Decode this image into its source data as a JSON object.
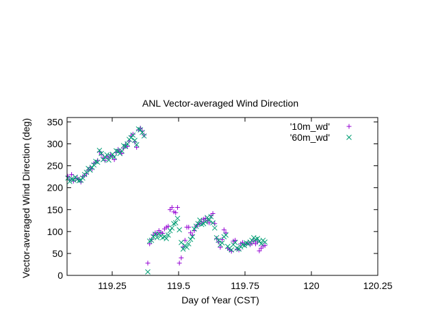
{
  "chart_data": {
    "type": "scatter",
    "title": "ANL Vector-averaged Wind Direction",
    "xlabel": "Day of Year  (CST)",
    "ylabel": "Vector-averaged Wind Direction (deg)",
    "xlim": [
      119.08,
      120.25
    ],
    "ylim": [
      0,
      360
    ],
    "xticks": [
      119.25,
      119.5,
      119.75,
      120,
      120.25
    ],
    "xtick_labels": [
      "119.25",
      "119.5",
      "119.75",
      "120",
      "120.25"
    ],
    "yticks": [
      0,
      50,
      100,
      150,
      200,
      250,
      300,
      350
    ],
    "ytick_labels": [
      "0",
      "50",
      "100",
      "150",
      "200",
      "250",
      "300",
      "350"
    ],
    "grid": false,
    "legend_position": "top-right",
    "series": [
      {
        "name": "'10m_wd'",
        "marker": "+",
        "color": "#9400d3",
        "points": [
          [
            119.083,
            226
          ],
          [
            119.09,
            218
          ],
          [
            119.097,
            230
          ],
          [
            119.104,
            215
          ],
          [
            119.111,
            221
          ],
          [
            119.118,
            222
          ],
          [
            119.125,
            219
          ],
          [
            119.132,
            213
          ],
          [
            119.139,
            225
          ],
          [
            119.146,
            228
          ],
          [
            119.153,
            232
          ],
          [
            119.16,
            240
          ],
          [
            119.167,
            246
          ],
          [
            119.174,
            243
          ],
          [
            119.181,
            255
          ],
          [
            119.188,
            258
          ],
          [
            119.195,
            262
          ],
          [
            119.202,
            282
          ],
          [
            119.209,
            276
          ],
          [
            119.216,
            268
          ],
          [
            119.223,
            262
          ],
          [
            119.23,
            271
          ],
          [
            119.237,
            268
          ],
          [
            119.244,
            275
          ],
          [
            119.251,
            272
          ],
          [
            119.258,
            264
          ],
          [
            119.265,
            280
          ],
          [
            119.272,
            287
          ],
          [
            119.279,
            283
          ],
          [
            119.286,
            278
          ],
          [
            119.293,
            290
          ],
          [
            119.3,
            298
          ],
          [
            119.307,
            294
          ],
          [
            119.314,
            306
          ],
          [
            119.321,
            318
          ],
          [
            119.328,
            322
          ],
          [
            119.335,
            304
          ],
          [
            119.342,
            292
          ],
          [
            119.349,
            332
          ],
          [
            119.356,
            336
          ],
          [
            119.363,
            329
          ],
          [
            119.37,
            320
          ],
          [
            119.384,
            28
          ],
          [
            119.391,
            72
          ],
          [
            119.398,
            82
          ],
          [
            119.405,
            92
          ],
          [
            119.412,
            97
          ],
          [
            119.419,
            94
          ],
          [
            119.426,
            102
          ],
          [
            119.433,
            98
          ],
          [
            119.44,
            96
          ],
          [
            119.447,
            106
          ],
          [
            119.454,
            110
          ],
          [
            119.461,
            112
          ],
          [
            119.468,
            150
          ],
          [
            119.475,
            155
          ],
          [
            119.482,
            145
          ],
          [
            119.489,
            143
          ],
          [
            119.496,
            155
          ],
          [
            119.503,
            28
          ],
          [
            119.51,
            40
          ],
          [
            119.517,
            65
          ],
          [
            119.524,
            80
          ],
          [
            119.531,
            110
          ],
          [
            119.538,
            110
          ],
          [
            119.545,
            97
          ],
          [
            119.552,
            92
          ],
          [
            119.559,
            102
          ],
          [
            119.566,
            112
          ],
          [
            119.573,
            116
          ],
          [
            119.58,
            118
          ],
          [
            119.587,
            122
          ],
          [
            119.594,
            128
          ],
          [
            119.601,
            130
          ],
          [
            119.608,
            125
          ],
          [
            119.615,
            120
          ],
          [
            119.622,
            136
          ],
          [
            119.629,
            141
          ],
          [
            119.636,
            118
          ],
          [
            119.643,
            84
          ],
          [
            119.65,
            76
          ],
          [
            119.657,
            64
          ],
          [
            119.664,
            82
          ],
          [
            119.671,
            104
          ],
          [
            119.678,
            97
          ],
          [
            119.685,
            62
          ],
          [
            119.692,
            58
          ],
          [
            119.699,
            55
          ],
          [
            119.706,
            78
          ],
          [
            119.713,
            80
          ],
          [
            119.72,
            60
          ],
          [
            119.727,
            58
          ],
          [
            119.734,
            72
          ],
          [
            119.741,
            75
          ],
          [
            119.748,
            70
          ],
          [
            119.755,
            72
          ],
          [
            119.762,
            74
          ],
          [
            119.769,
            70
          ],
          [
            119.776,
            73
          ],
          [
            119.783,
            78
          ],
          [
            119.79,
            72
          ],
          [
            119.797,
            76
          ],
          [
            119.804,
            56
          ],
          [
            119.811,
            62
          ],
          [
            119.818,
            67
          ],
          [
            119.825,
            68
          ]
        ]
      },
      {
        "name": "'60m_wd'",
        "marker": "x",
        "color": "#009e73",
        "points": [
          [
            119.083,
            222
          ],
          [
            119.09,
            214
          ],
          [
            119.097,
            220
          ],
          [
            119.104,
            218
          ],
          [
            119.111,
            224
          ],
          [
            119.118,
            219
          ],
          [
            119.125,
            216
          ],
          [
            119.132,
            217
          ],
          [
            119.139,
            222
          ],
          [
            119.146,
            230
          ],
          [
            119.153,
            235
          ],
          [
            119.16,
            244
          ],
          [
            119.167,
            240
          ],
          [
            119.174,
            246
          ],
          [
            119.181,
            252
          ],
          [
            119.188,
            260
          ],
          [
            119.195,
            258
          ],
          [
            119.202,
            285
          ],
          [
            119.209,
            278
          ],
          [
            119.216,
            264
          ],
          [
            119.223,
            270
          ],
          [
            119.23,
            275
          ],
          [
            119.237,
            263
          ],
          [
            119.244,
            272
          ],
          [
            119.251,
            276
          ],
          [
            119.258,
            270
          ],
          [
            119.265,
            284
          ],
          [
            119.272,
            283
          ],
          [
            119.279,
            278
          ],
          [
            119.286,
            284
          ],
          [
            119.293,
            296
          ],
          [
            119.3,
            294
          ],
          [
            119.307,
            300
          ],
          [
            119.314,
            310
          ],
          [
            119.321,
            314
          ],
          [
            119.328,
            320
          ],
          [
            119.335,
            308
          ],
          [
            119.342,
            298
          ],
          [
            119.349,
            334
          ],
          [
            119.356,
            332
          ],
          [
            119.363,
            326
          ],
          [
            119.37,
            318
          ],
          [
            119.384,
            8
          ],
          [
            119.391,
            78
          ],
          [
            119.398,
            80
          ],
          [
            119.405,
            88
          ],
          [
            119.412,
            94
          ],
          [
            119.419,
            86
          ],
          [
            119.426,
            95
          ],
          [
            119.433,
            90
          ],
          [
            119.44,
            86
          ],
          [
            119.447,
            88
          ],
          [
            119.454,
            84
          ],
          [
            119.461,
            92
          ],
          [
            119.468,
            102
          ],
          [
            119.475,
            108
          ],
          [
            119.482,
            118
          ],
          [
            119.489,
            120
          ],
          [
            119.496,
            130
          ],
          [
            119.503,
            104
          ],
          [
            119.51,
            75
          ],
          [
            119.517,
            60
          ],
          [
            119.524,
            68
          ],
          [
            119.531,
            64
          ],
          [
            119.538,
            72
          ],
          [
            119.545,
            82
          ],
          [
            119.552,
            88
          ],
          [
            119.559,
            106
          ],
          [
            119.566,
            112
          ],
          [
            119.573,
            118
          ],
          [
            119.58,
            126
          ],
          [
            119.587,
            116
          ],
          [
            119.594,
            118
          ],
          [
            119.601,
            122
          ],
          [
            119.608,
            132
          ],
          [
            119.615,
            126
          ],
          [
            119.622,
            134
          ],
          [
            119.629,
            120
          ],
          [
            119.636,
            108
          ],
          [
            119.643,
            86
          ],
          [
            119.65,
            80
          ],
          [
            119.657,
            70
          ],
          [
            119.664,
            74
          ],
          [
            119.671,
            88
          ],
          [
            119.678,
            92
          ],
          [
            119.685,
            66
          ],
          [
            119.692,
            62
          ],
          [
            119.699,
            58
          ],
          [
            119.706,
            70
          ],
          [
            119.713,
            75
          ],
          [
            119.72,
            62
          ],
          [
            119.727,
            60
          ],
          [
            119.734,
            65
          ],
          [
            119.741,
            70
          ],
          [
            119.748,
            68
          ],
          [
            119.755,
            74
          ],
          [
            119.762,
            72
          ],
          [
            119.769,
            76
          ],
          [
            119.776,
            80
          ],
          [
            119.783,
            86
          ],
          [
            119.79,
            82
          ],
          [
            119.797,
            84
          ],
          [
            119.804,
            78
          ],
          [
            119.811,
            72
          ],
          [
            119.818,
            80
          ],
          [
            119.825,
            76
          ]
        ]
      }
    ]
  }
}
